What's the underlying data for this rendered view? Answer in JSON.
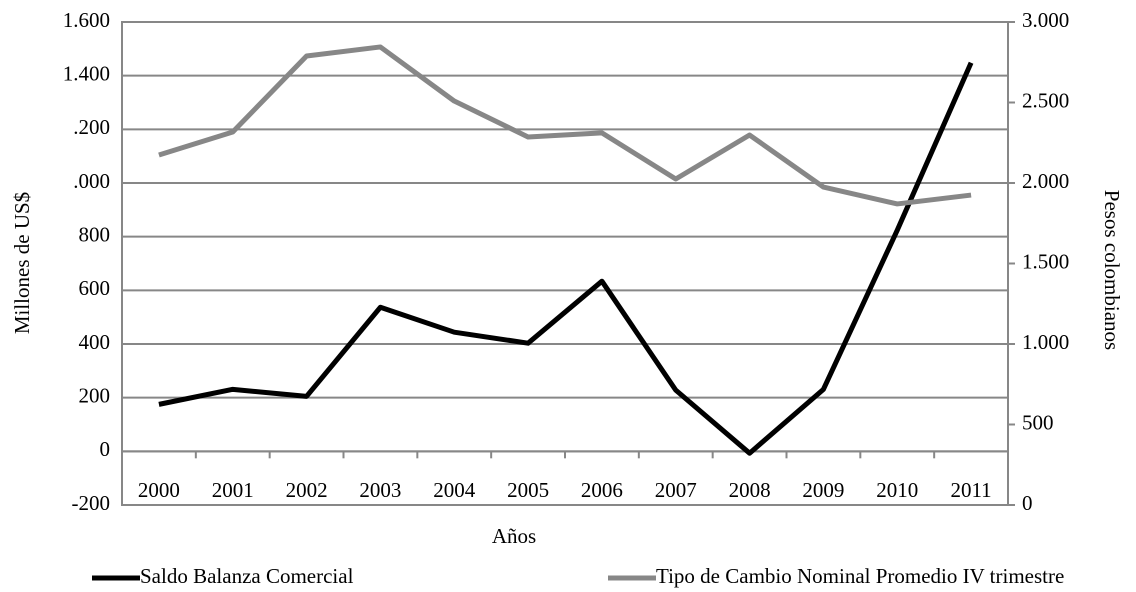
{
  "chart_data": {
    "type": "line",
    "categories": [
      "2000",
      "2001",
      "2002",
      "2003",
      "2004",
      "2005",
      "2006",
      "2007",
      "2008",
      "2009",
      "2010",
      "2011"
    ],
    "series": [
      {
        "name": "Saldo Balanza Comercial",
        "color": "#000000",
        "axis": "y",
        "values": [
          175,
          231,
          205,
          537,
          444,
          403,
          634,
          228,
          -7,
          231,
          824,
          1448
        ]
      },
      {
        "name": "Tipo de Cambio Nominal Promedio IV trimestre",
        "color": "#878787",
        "axis": "y2",
        "values": [
          2174,
          2317,
          2789,
          2845,
          2509,
          2286,
          2311,
          2025,
          2298,
          1975,
          1870,
          1925
        ]
      }
    ],
    "ylabel": "Millones de US$",
    "y2label": "Pesos colombianos",
    "xlabel": "Años",
    "ylim": [
      -200,
      1600
    ],
    "yticks": [
      -200,
      0,
      200,
      400,
      600,
      800,
      {
        "value": 1000,
        "label": ".000"
      },
      {
        "value": 1200,
        "label": ".200"
      },
      {
        "value": 1400,
        "label": "1.400"
      },
      {
        "value": 1600,
        "label": "1.600"
      }
    ],
    "y2lim": [
      0,
      3000
    ],
    "y2ticks": [
      0,
      500,
      {
        "value": 1000,
        "label": "1.000"
      },
      {
        "value": 1500,
        "label": "1.500"
      },
      {
        "value": 2000,
        "label": "2.000"
      },
      {
        "value": 2500,
        "label": "2.500"
      },
      {
        "value": 3000,
        "label": "3.000"
      }
    ],
    "grid": true
  }
}
